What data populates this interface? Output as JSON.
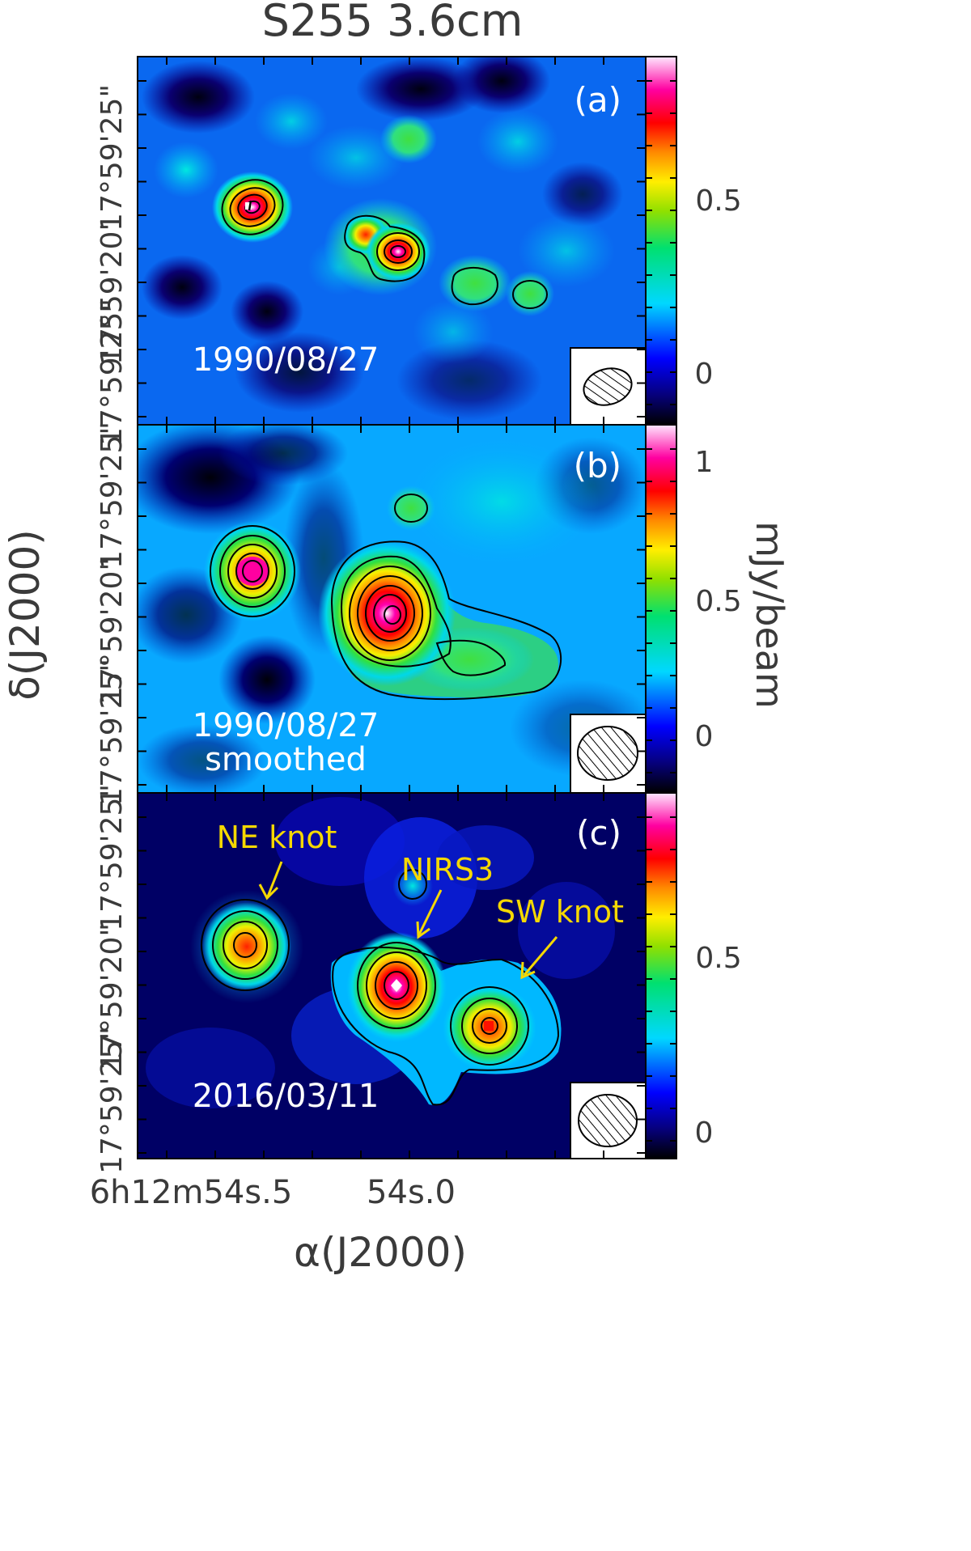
{
  "figure": {
    "title": "S255   3.6cm",
    "x_axis_label": "α(J2000)",
    "y_axis_label": "δ(J2000)",
    "colorbar_label": "mJy/beam",
    "x_tick_labels": [
      "6h12m54s.5",
      "54s.0"
    ],
    "y_tick_labels": [
      "17°59'25\"",
      "17°59'20\""
    ]
  },
  "chart_data": [
    {
      "type": "heatmap",
      "panel_tag": "(a)",
      "epoch": "1990/08/27",
      "note": "",
      "colorbar_ticks": [
        "0.5",
        "0"
      ],
      "colorbar_range": [
        -0.15,
        0.88
      ],
      "beam": {
        "shape": "ellipse",
        "major_arcsec": 2.2,
        "minor_arcsec": 1.4
      },
      "sources": [
        {
          "name": "NE knot",
          "ra_offset_arcsec": 2.9,
          "dec_offset_arcsec": 23.7,
          "peak_mJy": 0.85,
          "contours": 4
        },
        {
          "name": "NIRS3",
          "ra_offset_arcsec": 0.0,
          "dec_offset_arcsec": 22.6,
          "peak_mJy": 0.75,
          "contours": 4
        },
        {
          "name": "",
          "ra_offset_arcsec": 0.8,
          "dec_offset_arcsec": 23.0,
          "peak_mJy": 0.5,
          "contours": 1
        },
        {
          "name": "",
          "ra_offset_arcsec": -1.2,
          "dec_offset_arcsec": 21.9,
          "peak_mJy": 0.32,
          "contours": 1
        },
        {
          "name": "",
          "ra_offset_arcsec": -2.5,
          "dec_offset_arcsec": 21.7,
          "peak_mJy": 0.28,
          "contours": 1
        }
      ]
    },
    {
      "type": "heatmap",
      "panel_tag": "(b)",
      "epoch": "1990/08/27",
      "note": "smoothed",
      "colorbar_ticks": [
        "1",
        "0.5",
        "0"
      ],
      "colorbar_range": [
        -0.2,
        1.1
      ],
      "beam": {
        "shape": "ellipse",
        "major_arcsec": 2.8,
        "minor_arcsec": 2.4
      },
      "sources": [
        {
          "name": "NE knot",
          "ra_offset_arcsec": 2.9,
          "dec_offset_arcsec": 23.8,
          "peak_mJy": 0.8,
          "contours": 5
        },
        {
          "name": "NIRS3",
          "ra_offset_arcsec": 0.1,
          "dec_offset_arcsec": 22.6,
          "peak_mJy": 1.05,
          "contours": 6
        },
        {
          "name": "",
          "ra_offset_arcsec": -1.5,
          "dec_offset_arcsec": 21.5,
          "peak_mJy": 0.35,
          "contours": 2
        },
        {
          "name": "",
          "ra_offset_arcsec": 0.1,
          "dec_offset_arcsec": 25.5,
          "peak_mJy": 0.25,
          "contours": 1
        }
      ]
    },
    {
      "type": "heatmap",
      "panel_tag": "(c)",
      "epoch": "2016/03/11",
      "note": "",
      "colorbar_ticks": [
        "0.5",
        "0"
      ],
      "colorbar_range": [
        -0.08,
        0.9
      ],
      "beam": {
        "shape": "ellipse",
        "major_arcsec": 2.7,
        "minor_arcsec": 2.4
      },
      "sources": [
        {
          "name": "NE knot",
          "ra_offset_arcsec": 3.1,
          "dec_offset_arcsec": 23.3,
          "peak_mJy": 0.62,
          "contours": 4
        },
        {
          "name": "NIRS3",
          "ra_offset_arcsec": 0.2,
          "dec_offset_arcsec": 22.3,
          "peak_mJy": 0.88,
          "contours": 5
        },
        {
          "name": "SW knot",
          "ra_offset_arcsec": -1.4,
          "dec_offset_arcsec": 21.3,
          "peak_mJy": 0.72,
          "contours": 4
        },
        {
          "name": "",
          "ra_offset_arcsec": 0.2,
          "dec_offset_arcsec": 25.0,
          "peak_mJy": 0.15,
          "contours": 1
        }
      ],
      "annotations": [
        {
          "text": "NE knot",
          "color": "#f5d800"
        },
        {
          "text": "NIRS3",
          "color": "#f5d800"
        },
        {
          "text": "SW knot",
          "color": "#f5d800"
        }
      ]
    }
  ]
}
